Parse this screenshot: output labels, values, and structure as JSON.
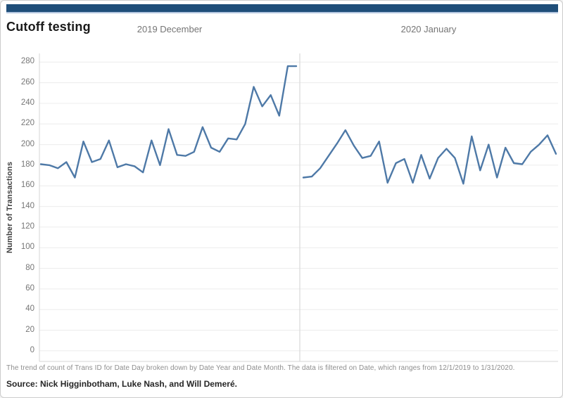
{
  "title": "Cutoff testing",
  "y_axis": {
    "label": "Number of Transactions",
    "ticks": [
      0,
      20,
      40,
      60,
      80,
      100,
      120,
      140,
      160,
      180,
      200,
      220,
      240,
      260,
      280
    ]
  },
  "caption": "The trend of count of Trans ID for Date Day broken down by Date Year and Date Month. The data is filtered on Date, which ranges from 12/1/2019 to 1/31/2020.",
  "source": "Source: Nick Higginbotham, Luke Nash, and Will Demeré.",
  "colors": {
    "accent_bar": "#1F4E79",
    "line": "#4E79A7",
    "gridline": "#ECECEC",
    "axis_line": "#D4D4D4",
    "panel_divider": "#D9D9D9"
  },
  "chart_data": {
    "type": "line",
    "title": "Cutoff testing",
    "xlabel": "Date Day",
    "ylabel": "Number of Transactions",
    "ylim": [
      0,
      280
    ],
    "y_tick_step": 20,
    "grid": true,
    "legend": "none",
    "panels": [
      {
        "label": "2019 December",
        "x": [
          1,
          2,
          3,
          4,
          5,
          6,
          7,
          8,
          9,
          10,
          11,
          12,
          13,
          14,
          15,
          16,
          17,
          18,
          19,
          20,
          21,
          22,
          23,
          24,
          25,
          26,
          27,
          28,
          29,
          30,
          31
        ],
        "values": [
          181,
          180,
          177,
          183,
          168,
          203,
          183,
          186,
          204,
          178,
          181,
          179,
          173,
          204,
          180,
          215,
          190,
          189,
          193,
          217,
          197,
          193,
          206,
          205,
          220,
          256,
          237,
          248,
          228,
          276,
          276
        ]
      },
      {
        "label": "2020 January",
        "x": [
          1,
          2,
          3,
          4,
          5,
          6,
          7,
          8,
          9,
          10,
          11,
          12,
          13,
          14,
          15,
          16,
          17,
          18,
          19,
          20,
          21,
          22,
          23,
          24,
          25,
          26,
          27,
          28,
          29,
          30,
          31
        ],
        "values": [
          168,
          169,
          177,
          189,
          201,
          214,
          199,
          187,
          189,
          203,
          163,
          182,
          186,
          163,
          190,
          167,
          187,
          196,
          187,
          162,
          208,
          175,
          200,
          168,
          197,
          182,
          181,
          193,
          200,
          209,
          191
        ]
      }
    ]
  }
}
